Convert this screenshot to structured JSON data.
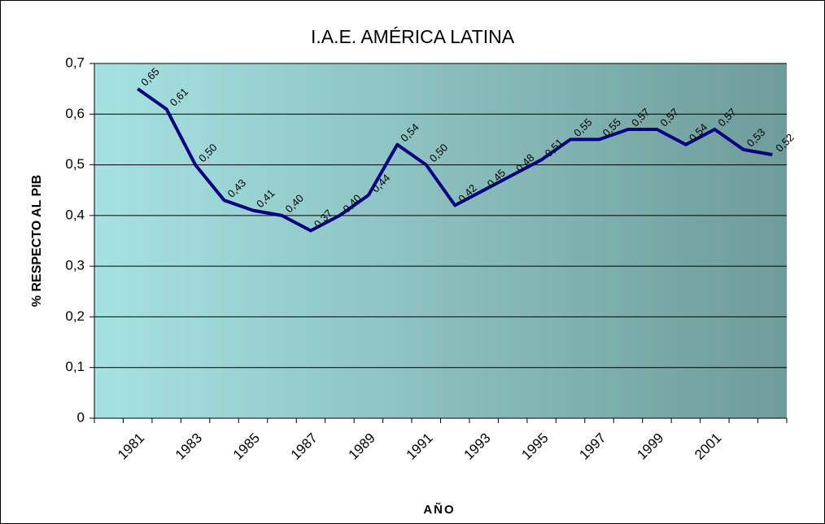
{
  "chart_data": {
    "type": "line",
    "title": "I.A.E. AMÉRICA LATINA",
    "x_label": "AÑO",
    "y_label": "% RESPECTO AL PIB",
    "categories": [
      null,
      "1981",
      null,
      "1983",
      null,
      "1985",
      null,
      "1987",
      null,
      "1989",
      null,
      "1991",
      null,
      "1993",
      null,
      "1995",
      null,
      "1997",
      null,
      "1999",
      null,
      "2001",
      null,
      null
    ],
    "series": [
      {
        "name": "I.A.E.",
        "color": "#000080",
        "values": [
          null,
          0.65,
          0.61,
          0.5,
          0.43,
          0.41,
          0.4,
          0.37,
          0.4,
          0.44,
          0.54,
          0.5,
          0.42,
          0.45,
          0.48,
          0.51,
          0.55,
          0.55,
          0.57,
          0.57,
          0.54,
          0.57,
          0.53,
          0.52
        ],
        "value_labels": [
          null,
          "0,65",
          "0,61",
          "0,50",
          "0,43",
          "0,41",
          "0,40",
          "0,37",
          "0,40",
          "0,44",
          "0,54",
          "0,50",
          "0,42",
          "0,45",
          "0,48",
          "0,51",
          "0,55",
          "0,55",
          "0,57",
          "0,57",
          "0,54",
          "0,57",
          "0,53",
          "0,52"
        ]
      }
    ],
    "ylim": [
      0,
      0.7
    ],
    "yticks": [
      0,
      {
        "value": 0.1,
        "label": "0,1"
      },
      {
        "value": 0.2,
        "label": "0,2"
      },
      {
        "value": 0.3,
        "label": "0,3"
      },
      {
        "value": 0.4,
        "label": "0,4"
      },
      {
        "value": 0.5,
        "label": "0,5"
      },
      {
        "value": 0.6,
        "label": "0,6"
      },
      {
        "value": 0.7,
        "label": "0,7"
      }
    ],
    "grid": true
  }
}
